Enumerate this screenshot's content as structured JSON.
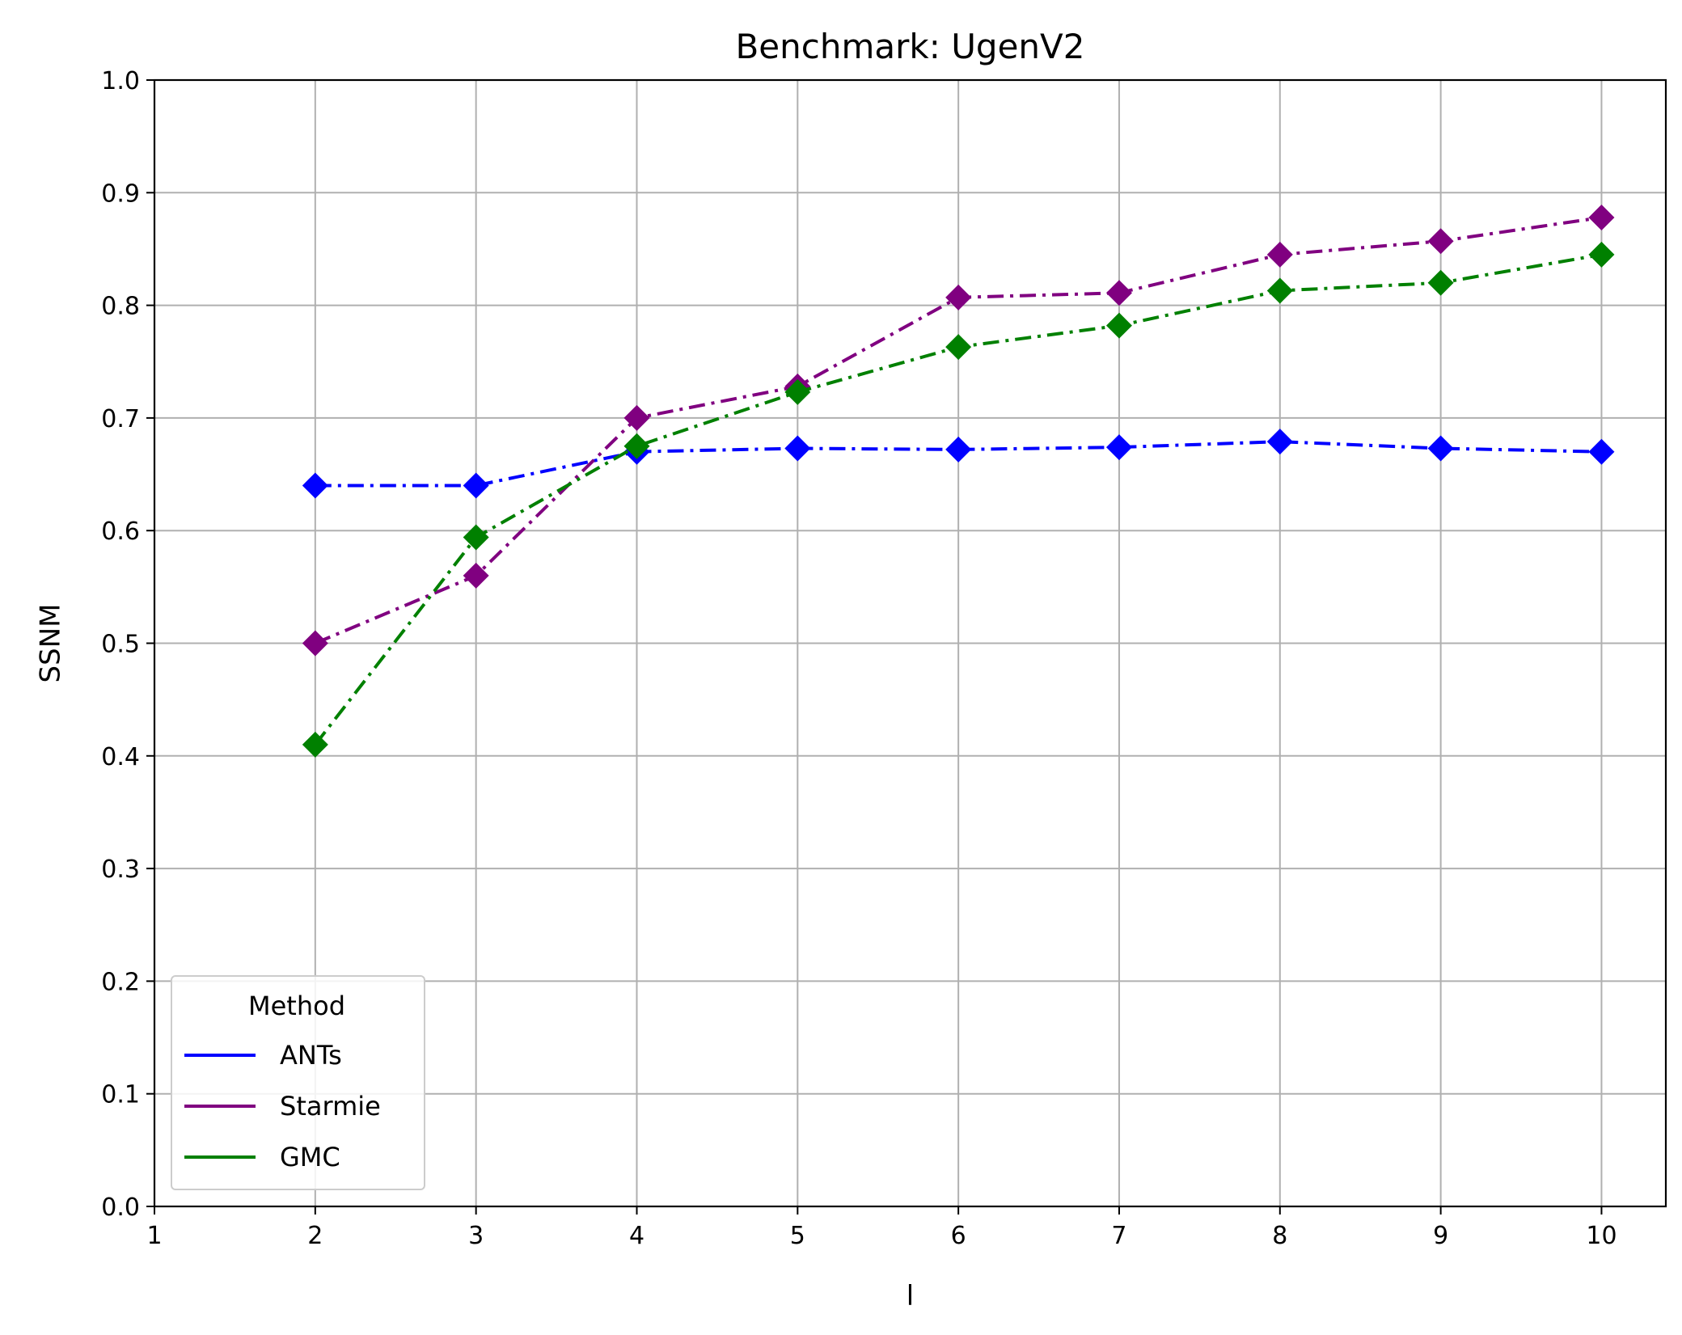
{
  "chart_data": {
    "type": "line",
    "title": "Benchmark: UgenV2",
    "xlabel": "l",
    "ylabel": "SSNM",
    "xlim": [
      1,
      10.4
    ],
    "ylim": [
      0.0,
      1.0
    ],
    "xticks": [
      1,
      2,
      3,
      4,
      5,
      6,
      7,
      8,
      9,
      10
    ],
    "yticks": [
      0.0,
      0.1,
      0.2,
      0.3,
      0.4,
      0.5,
      0.6,
      0.7,
      0.8,
      0.9,
      1.0
    ],
    "ytick_labels": [
      "0.0",
      "0.1",
      "0.2",
      "0.3",
      "0.4",
      "0.5",
      "0.6",
      "0.7",
      "0.8",
      "0.9",
      "1.0"
    ],
    "grid": true,
    "legend": {
      "title": "Method",
      "placement": "lower-left"
    },
    "x": [
      2,
      3,
      4,
      5,
      6,
      7,
      8,
      9,
      10
    ],
    "series": [
      {
        "name": "ANTs",
        "color": "#0000ff",
        "line_style": "dash-dot",
        "marker": "diamond",
        "values": [
          0.64,
          0.64,
          0.67,
          0.673,
          0.672,
          0.674,
          0.679,
          0.673,
          0.67
        ]
      },
      {
        "name": "Starmie",
        "color": "#800080",
        "line_style": "dash-dot",
        "marker": "diamond",
        "values": [
          0.5,
          0.56,
          0.7,
          0.728,
          0.807,
          0.811,
          0.845,
          0.857,
          0.878
        ]
      },
      {
        "name": "GMC",
        "color": "#008000",
        "line_style": "dash-dot",
        "marker": "diamond",
        "values": [
          0.41,
          0.594,
          0.675,
          0.723,
          0.763,
          0.782,
          0.813,
          0.82,
          0.845
        ]
      }
    ]
  }
}
